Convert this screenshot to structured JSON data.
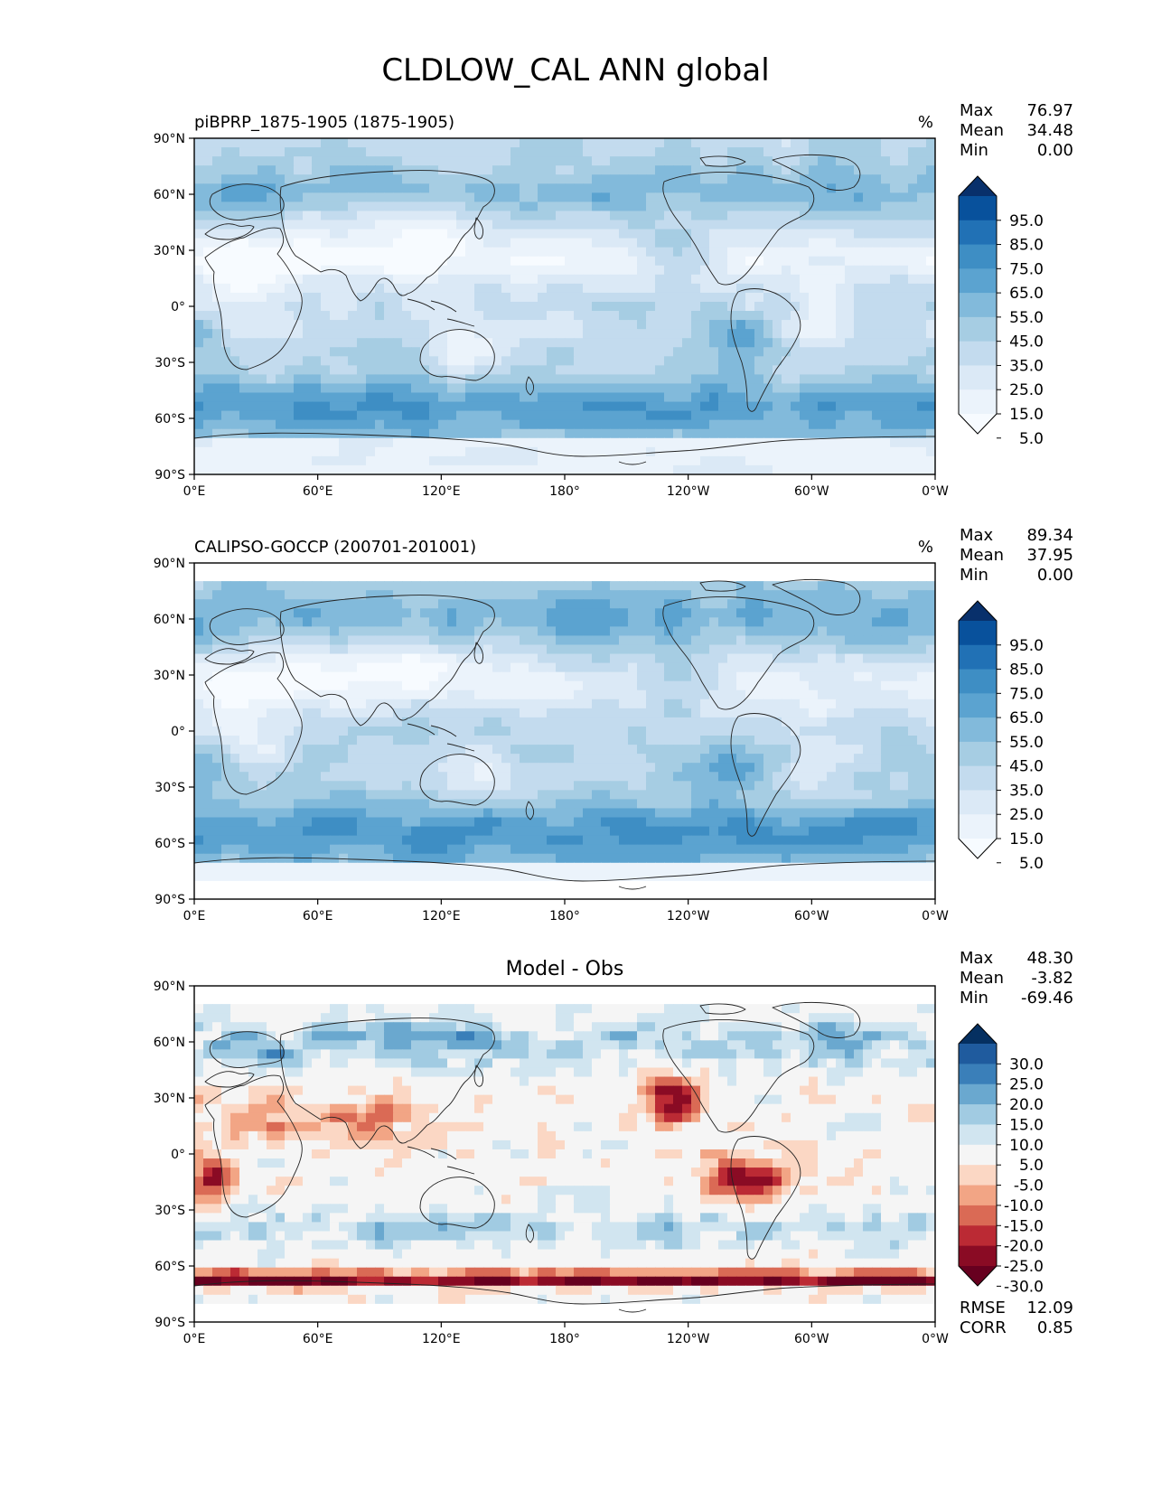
{
  "figure": {
    "title": "CLDLOW_CAL ANN global",
    "lon_ticks": [
      "0°E",
      "60°E",
      "120°E",
      "180°",
      "120°W",
      "60°W",
      "0°W"
    ],
    "lat_ticks": [
      "90°N",
      "60°N",
      "30°N",
      "0°",
      "30°S",
      "60°S",
      "90°S"
    ]
  },
  "panels": [
    {
      "title_left": "piBPRP_1875-1905 (1875-1905)",
      "title_center": "",
      "units": "%",
      "stats": [
        {
          "label": "Max",
          "value": "76.97"
        },
        {
          "label": "Mean",
          "value": "34.48"
        },
        {
          "label": "Min",
          "value": "0.00"
        }
      ],
      "colorbar": {
        "levels": [
          "95.0",
          "85.0",
          "75.0",
          "65.0",
          "55.0",
          "45.0",
          "35.0",
          "25.0",
          "15.0",
          "5.0"
        ],
        "colors": [
          "#08306b",
          "#08519c",
          "#2171b5",
          "#3e8ec4",
          "#5ba3d0",
          "#82badb",
          "#a6cde3",
          "#c3dbee",
          "#dbe9f6",
          "#ebf3fb",
          "#f7fbff"
        ]
      },
      "field": "model"
    },
    {
      "title_left": "CALIPSO-GOCCP (200701-201001)",
      "title_center": "",
      "units": "%",
      "stats": [
        {
          "label": "Max",
          "value": "89.34"
        },
        {
          "label": "Mean",
          "value": "37.95"
        },
        {
          "label": "Min",
          "value": "0.00"
        }
      ],
      "colorbar": {
        "levels": [
          "95.0",
          "85.0",
          "75.0",
          "65.0",
          "55.0",
          "45.0",
          "35.0",
          "25.0",
          "15.0",
          "5.0"
        ],
        "colors": [
          "#08306b",
          "#08519c",
          "#2171b5",
          "#3e8ec4",
          "#5ba3d0",
          "#82badb",
          "#a6cde3",
          "#c3dbee",
          "#dbe9f6",
          "#ebf3fb",
          "#f7fbff"
        ]
      },
      "field": "obs"
    },
    {
      "title_left": "",
      "title_center": "Model - Obs",
      "units": "",
      "stats": [
        {
          "label": "Max",
          "value": "48.30"
        },
        {
          "label": "Mean",
          "value": "-3.82"
        },
        {
          "label": "Min",
          "value": "-69.46"
        }
      ],
      "colorbar": {
        "levels": [
          "30.0",
          "25.0",
          "20.0",
          "15.0",
          "10.0",
          "5.0",
          "-5.0",
          "-10.0",
          "-15.0",
          "-20.0",
          "-25.0",
          "-30.0"
        ],
        "colors": [
          "#053061",
          "#1f5b9e",
          "#3a7fb9",
          "#6aa8cf",
          "#a1cbe2",
          "#d1e5f0",
          "#f5f5f5",
          "#fbd7c4",
          "#f2a585",
          "#da6a55",
          "#bb2a34",
          "#8a0b24",
          "#67001f"
        ]
      },
      "bottom_stats": [
        {
          "label": "RMSE",
          "value": "12.09"
        },
        {
          "label": "CORR",
          "value": "0.85"
        }
      ],
      "field": "diff"
    }
  ]
}
